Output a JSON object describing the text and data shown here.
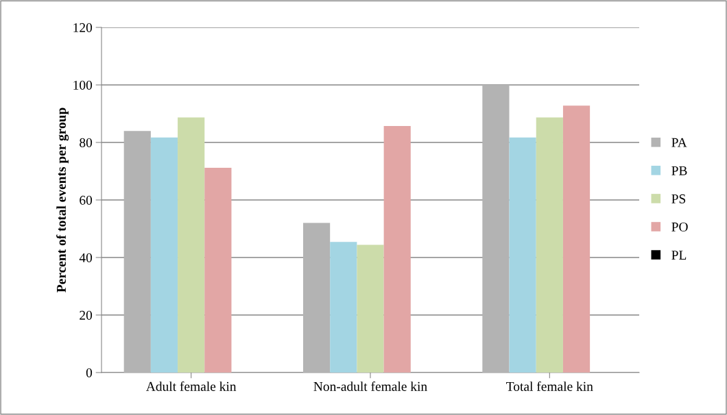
{
  "chart_data": {
    "type": "bar",
    "ylabel": "Percent of total events per group",
    "categories": [
      "Adult female kin",
      "Non-adult female kin",
      "Total female kin"
    ],
    "series": [
      {
        "name": "PA",
        "color": "#b3b3b3",
        "values": [
          84,
          52,
          100
        ]
      },
      {
        "name": "PB",
        "color": "#a3d5e3",
        "values": [
          81.7,
          45.4,
          81.7
        ]
      },
      {
        "name": "PS",
        "color": "#ccdcaa",
        "values": [
          88.7,
          44.4,
          88.7
        ]
      },
      {
        "name": "PO",
        "color": "#e2a6a5",
        "values": [
          71.2,
          85.7,
          92.8
        ]
      },
      {
        "name": "PL",
        "color": "#000000",
        "values": [
          0,
          0,
          0
        ]
      }
    ],
    "ylim": [
      0,
      120
    ],
    "yticks": [
      0,
      20,
      40,
      60,
      80,
      100,
      120
    ],
    "grid": "y",
    "legend": "right"
  }
}
